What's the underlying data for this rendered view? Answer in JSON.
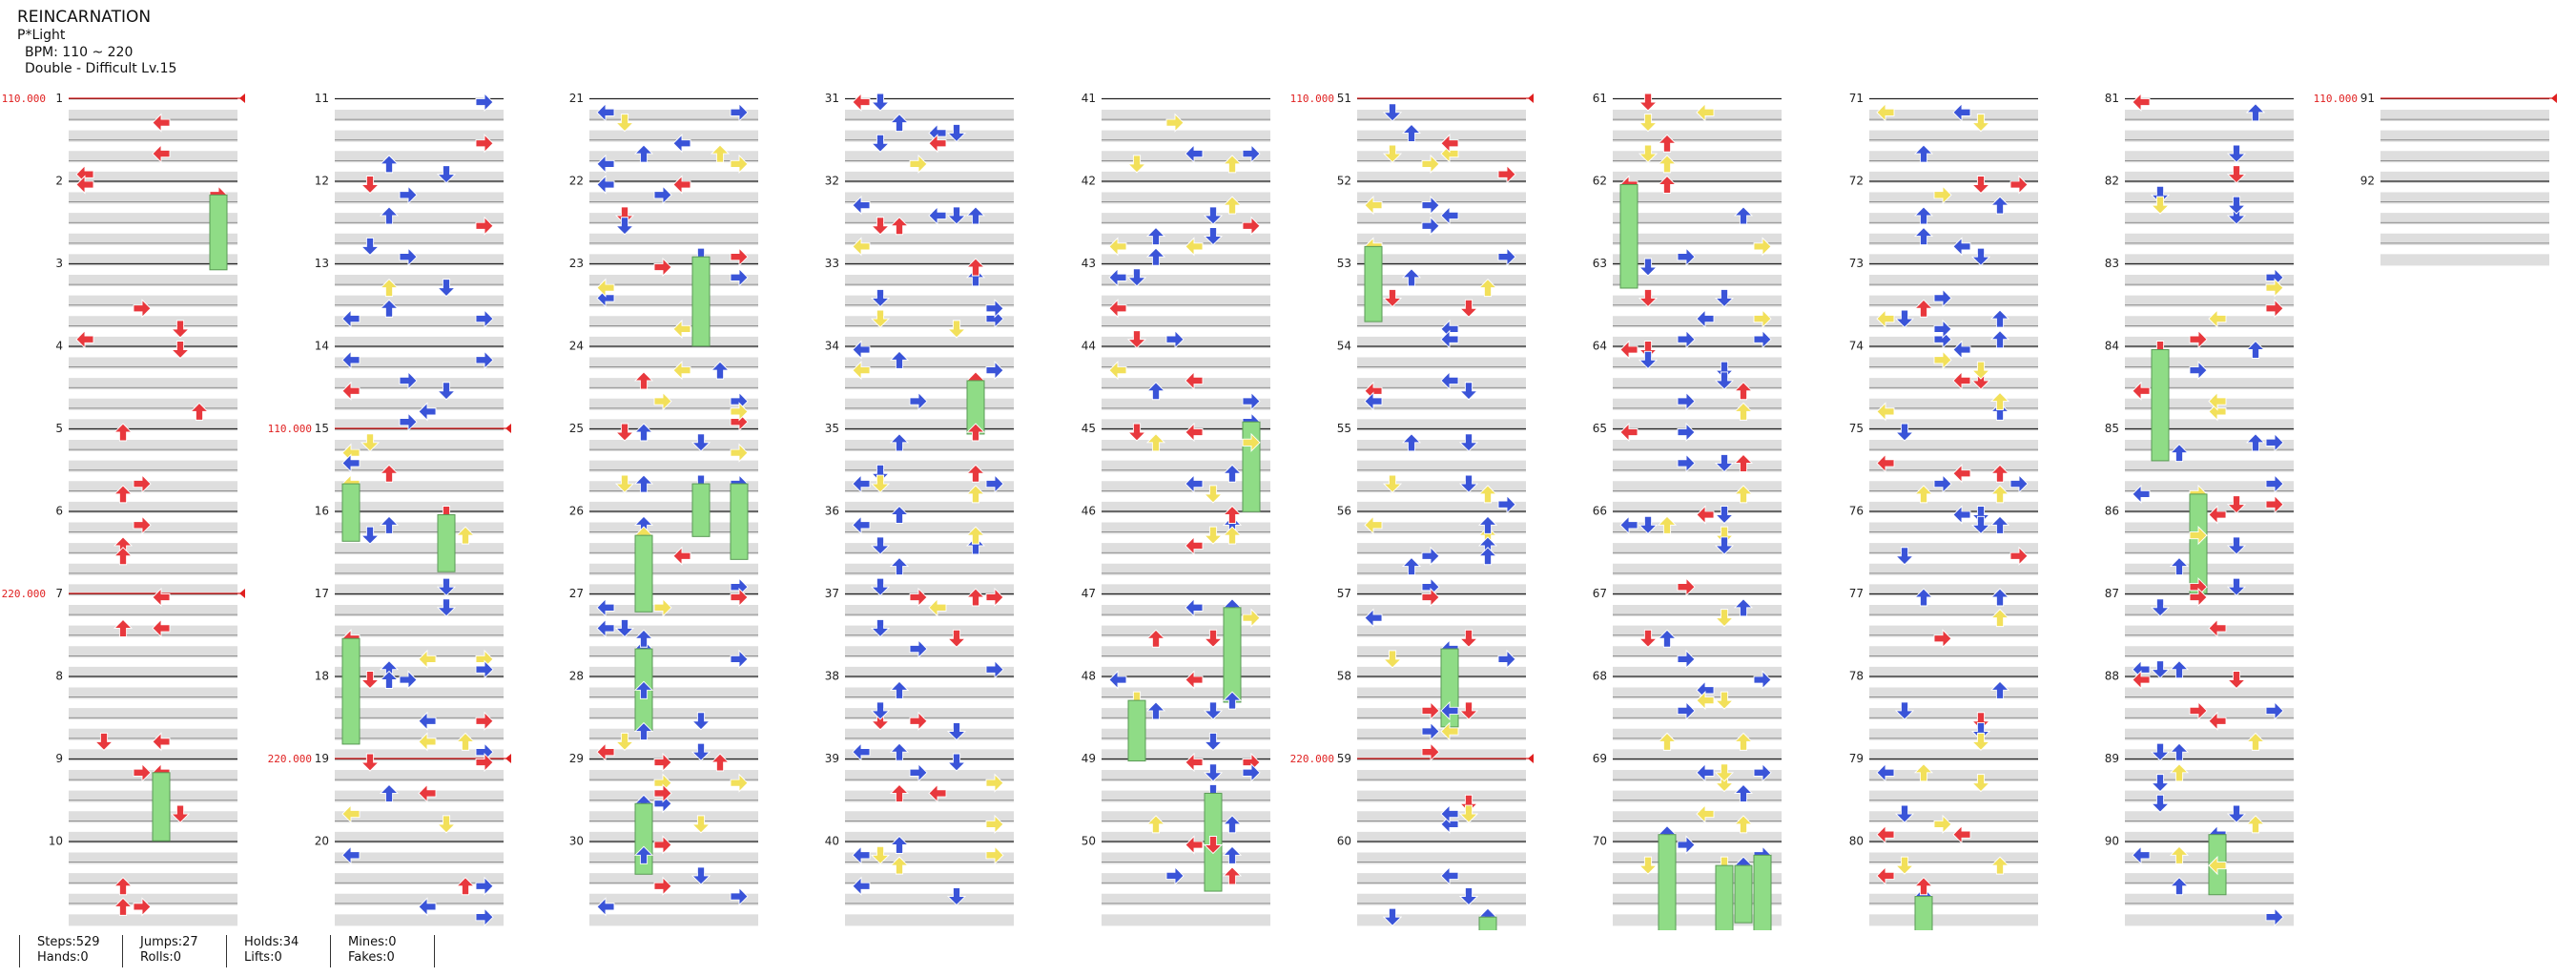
{
  "song": {
    "title": "REINCARNATION",
    "artist": "P*Light",
    "bpm_label": "BPM: 110 ~ 220",
    "difficulty_label": "Double - Difficult Lv.15"
  },
  "colors": {
    "red_arrow": "#e8383d",
    "blue_arrow": "#3a54d8",
    "yellow_arrow": "#f2e05a",
    "orange_arrow": "#e8823a",
    "hold": "#8fdc86",
    "bpm_line": "#e02020",
    "lane_shade": "#dedede",
    "beat_line": "#222222"
  },
  "chart": {
    "measure_numbers": [
      "1",
      "2",
      "3",
      "4",
      "5",
      "6",
      "7",
      "8",
      "9",
      "10",
      "11",
      "12",
      "13",
      "14",
      "15",
      "16",
      "17",
      "18",
      "19",
      "20",
      "21",
      "22",
      "23",
      "24",
      "25",
      "26",
      "27",
      "28",
      "29",
      "30",
      "31",
      "32",
      "33",
      "34",
      "35",
      "36",
      "37",
      "38",
      "39",
      "40",
      "41",
      "42",
      "43",
      "44",
      "45",
      "46",
      "47",
      "48",
      "49",
      "50",
      "51",
      "52",
      "53",
      "54",
      "55",
      "56",
      "57",
      "58",
      "59",
      "60",
      "61",
      "62",
      "63",
      "64",
      "65",
      "66",
      "67",
      "68",
      "69",
      "70",
      "71",
      "72",
      "73",
      "74",
      "75",
      "76",
      "77",
      "78",
      "79",
      "80",
      "81",
      "82",
      "83",
      "84",
      "85",
      "86",
      "87",
      "88",
      "89",
      "90",
      "91",
      "92"
    ],
    "bpm_changes": [
      {
        "measure": 1,
        "label": "110.000"
      },
      {
        "measure": 7,
        "label": "220.000"
      },
      {
        "measure": 15,
        "label": "110.000"
      },
      {
        "measure": 19,
        "label": "220.000"
      },
      {
        "measure": 51,
        "label": "110.000"
      },
      {
        "measure": 59,
        "label": "220.000"
      },
      {
        "measure": 91,
        "label": "110.000"
      }
    ]
  },
  "stats": [
    {
      "line1": "Steps:529",
      "line2": "Hands:0"
    },
    {
      "line1": "Jumps:27",
      "line2": "Rolls:0"
    },
    {
      "line1": "Holds:34",
      "line2": "Lifts:0"
    },
    {
      "line1": "Mines:0",
      "line2": "Fakes:0"
    }
  ]
}
